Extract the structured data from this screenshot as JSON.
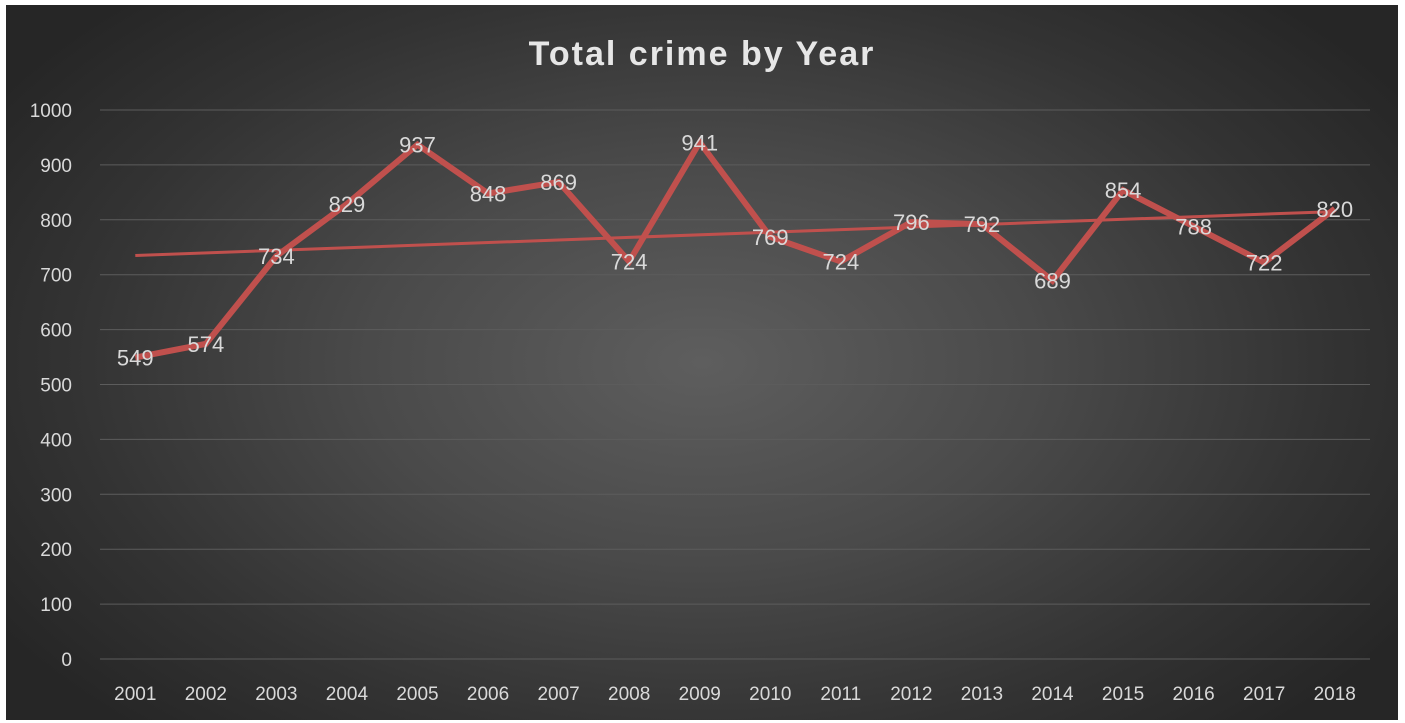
{
  "chart_data": {
    "type": "line",
    "title": "Total crime by Year",
    "xlabel": "",
    "ylabel": "",
    "categories": [
      "2001",
      "2002",
      "2003",
      "2004",
      "2005",
      "2006",
      "2007",
      "2008",
      "2009",
      "2010",
      "2011",
      "2012",
      "2013",
      "2014",
      "2015",
      "2016",
      "2017",
      "2018"
    ],
    "series": [
      {
        "values": [
          549,
          574,
          734,
          829,
          937,
          848,
          869,
          724,
          941,
          769,
          724,
          796,
          792,
          689,
          854,
          788,
          722,
          820
        ],
        "color": "#c0504d"
      }
    ],
    "trendline": {
      "type": "linear",
      "color": "#c0504d",
      "start_value": 735,
      "end_value": 815
    },
    "ylim": [
      0,
      1000
    ],
    "yticks": [
      0,
      100,
      200,
      300,
      400,
      500,
      600,
      700,
      800,
      900,
      1000
    ],
    "ytick_labels": [
      "0",
      "100",
      "200",
      "300",
      "400",
      "500",
      "600",
      "700",
      "800",
      "900",
      "1000"
    ],
    "grid": true,
    "data_labels": true,
    "background": "dark-radial-gradient"
  }
}
